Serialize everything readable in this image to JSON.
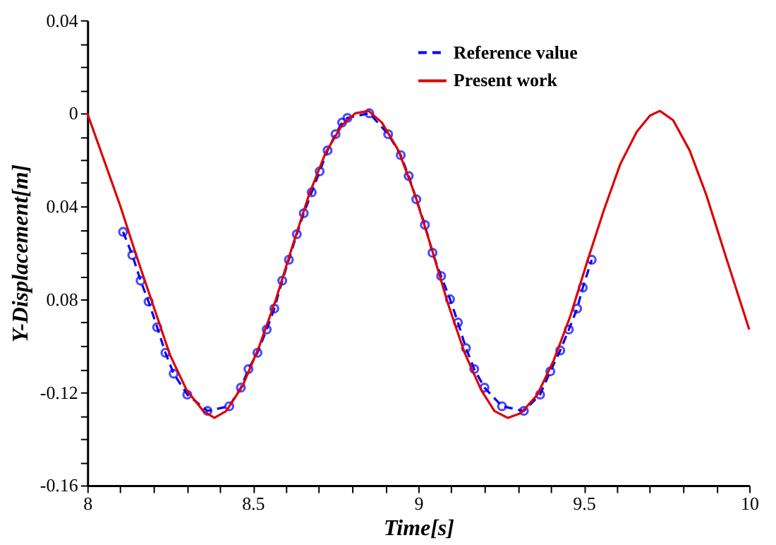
{
  "chart_data": {
    "type": "line",
    "xlabel": "Time[s]",
    "ylabel": "Y-Displacement[m]",
    "xlim": [
      8,
      10
    ],
    "ylim": [
      -0.16,
      0.04
    ],
    "xticks": [
      8,
      {
        "value": 8.1,
        "label": null
      },
      {
        "value": 8.2,
        "label": null
      },
      {
        "value": 8.3,
        "label": null
      },
      {
        "value": 8.4,
        "label": null
      },
      8.5,
      {
        "value": 8.6,
        "label": null
      },
      {
        "value": 8.7,
        "label": null
      },
      {
        "value": 8.8,
        "label": null
      },
      {
        "value": 8.9,
        "label": null
      },
      9,
      {
        "value": 9.1,
        "label": null
      },
      {
        "value": 9.2,
        "label": null
      },
      {
        "value": 9.3,
        "label": null
      },
      {
        "value": 9.4,
        "label": null
      },
      9.5,
      {
        "value": 9.6,
        "label": null
      },
      {
        "value": 9.7,
        "label": null
      },
      {
        "value": 9.8,
        "label": null
      },
      {
        "value": 9.9,
        "label": null
      },
      10
    ],
    "yticks": [
      -0.16,
      {
        "value": -0.15,
        "label": null
      },
      {
        "value": -0.14,
        "label": null
      },
      {
        "value": -0.13,
        "label": null
      },
      -0.12,
      {
        "value": -0.11,
        "label": null
      },
      {
        "value": -0.1,
        "label": null
      },
      {
        "value": -0.09,
        "label": null
      },
      {
        "value": -0.08,
        "label": "0.08"
      },
      {
        "value": -0.07,
        "label": null
      },
      {
        "value": -0.06,
        "label": null
      },
      {
        "value": -0.05,
        "label": null
      },
      {
        "value": -0.04,
        "label": "0.04"
      },
      {
        "value": -0.03,
        "label": null
      },
      {
        "value": -0.02,
        "label": null
      },
      {
        "value": -0.01,
        "label": null
      },
      0,
      {
        "value": 0.01,
        "label": null
      },
      {
        "value": 0.02,
        "label": null
      },
      {
        "value": 0.03,
        "label": null
      },
      0.04
    ],
    "grid": false,
    "legend": "top right",
    "series": [
      {
        "name": "Reference value",
        "color": "#0000ff",
        "line_style": "dashed",
        "marker": "circle",
        "x": [
          8.108,
          8.136,
          8.161,
          8.185,
          8.211,
          8.236,
          8.261,
          8.302,
          8.363,
          8.429,
          8.464,
          8.487,
          8.514,
          8.542,
          8.565,
          8.589,
          8.609,
          8.633,
          8.654,
          8.678,
          8.702,
          8.726,
          8.75,
          8.77,
          8.786,
          8.852,
          8.909,
          8.947,
          8.971,
          8.994,
          9.02,
          9.043,
          9.069,
          9.096,
          9.12,
          9.144,
          9.169,
          9.2,
          9.253,
          9.319,
          9.368,
          9.399,
          9.429,
          9.455,
          9.48,
          9.497,
          9.524
        ],
        "values": [
          -0.051,
          -0.061,
          -0.072,
          -0.081,
          -0.092,
          -0.103,
          -0.112,
          -0.121,
          -0.128,
          -0.126,
          -0.118,
          -0.11,
          -0.103,
          -0.093,
          -0.084,
          -0.072,
          -0.063,
          -0.052,
          -0.043,
          -0.034,
          -0.025,
          -0.016,
          -0.009,
          -0.004,
          -0.002,
          0.0,
          -0.009,
          -0.018,
          -0.027,
          -0.037,
          -0.048,
          -0.06,
          -0.07,
          -0.08,
          -0.09,
          -0.101,
          -0.11,
          -0.118,
          -0.126,
          -0.128,
          -0.121,
          -0.111,
          -0.102,
          -0.093,
          -0.084,
          -0.075,
          -0.063
        ]
      },
      {
        "name": "Present work",
        "color": "#dd0000",
        "line_style": "solid",
        "marker": "none",
        "x": [
          8.0,
          8.05,
          8.1,
          8.15,
          8.2,
          8.25,
          8.3,
          8.35,
          8.384,
          8.42,
          8.47,
          8.52,
          8.57,
          8.62,
          8.67,
          8.72,
          8.77,
          8.81,
          8.85,
          8.89,
          8.94,
          8.99,
          9.04,
          9.09,
          9.14,
          9.19,
          9.23,
          9.27,
          9.31,
          9.36,
          9.41,
          9.46,
          9.51,
          9.56,
          9.61,
          9.66,
          9.7,
          9.73,
          9.77,
          9.82,
          9.87,
          9.93,
          10.0
        ],
        "values": [
          0.0,
          -0.02,
          -0.04,
          -0.062,
          -0.083,
          -0.104,
          -0.119,
          -0.128,
          -0.131,
          -0.128,
          -0.117,
          -0.1,
          -0.08,
          -0.057,
          -0.035,
          -0.017,
          -0.005,
          0.0,
          0.001,
          -0.004,
          -0.016,
          -0.035,
          -0.058,
          -0.082,
          -0.103,
          -0.119,
          -0.128,
          -0.131,
          -0.129,
          -0.121,
          -0.106,
          -0.087,
          -0.064,
          -0.042,
          -0.022,
          -0.008,
          -0.001,
          0.001,
          -0.003,
          -0.016,
          -0.035,
          -0.062,
          -0.093
        ]
      }
    ]
  }
}
